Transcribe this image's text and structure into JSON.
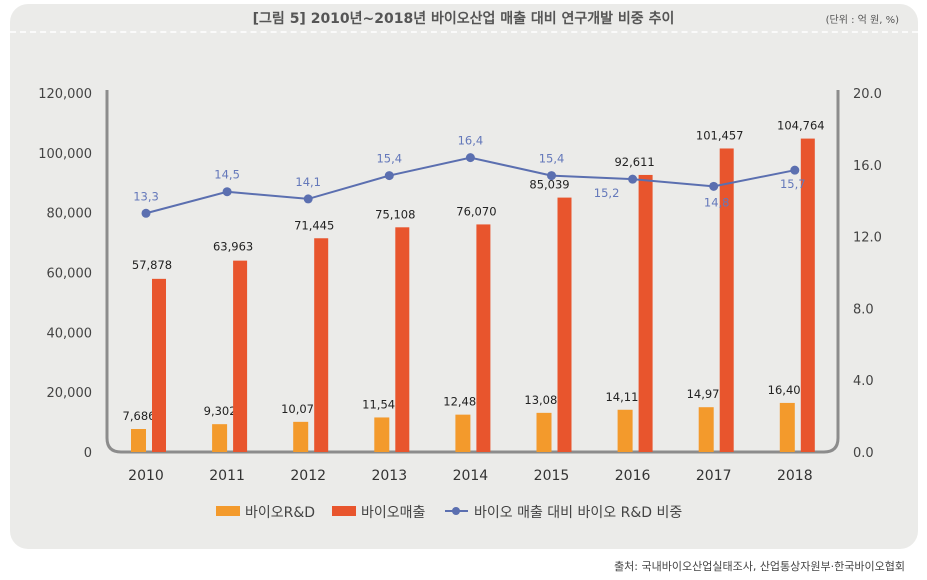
{
  "chart_data": {
    "type": "bar",
    "title": "[그림 5] 2010년~2018년 바이오산업 매출 대비 연구개발 비중 추이",
    "unit_note": "(단위 : 억 원, %)",
    "source": "출처: 국내바이오산업실태조사, 산업통상자원부·한국바이오협회",
    "categories": [
      "2010",
      "2011",
      "2012",
      "2013",
      "2014",
      "2015",
      "2016",
      "2017",
      "2018"
    ],
    "series": [
      {
        "name": "바이오R&D",
        "type": "bar",
        "axis": "left",
        "color": "#f39a2c",
        "values": [
          7686,
          9302,
          10079,
          11547,
          12486,
          13086,
          14118,
          14973,
          16406
        ],
        "labels": [
          "7,686",
          "9,302",
          "10,079",
          "11,547",
          "12,486",
          "13,086",
          "14,118",
          "14,973",
          "16,406"
        ]
      },
      {
        "name": "바이오매출",
        "type": "bar",
        "axis": "left",
        "color": "#e8552d",
        "values": [
          57878,
          63963,
          71445,
          75108,
          76070,
          85039,
          92611,
          101457,
          104764
        ],
        "labels": [
          "57,878",
          "63,963",
          "71,445",
          "75,108",
          "76,070",
          "85,039",
          "92,611",
          "101,457",
          "104,764"
        ]
      },
      {
        "name": "바이오 매출 대비 바이오 R&D 비중",
        "type": "line",
        "axis": "right",
        "color": "#5b6fb0",
        "values": [
          13.3,
          14.5,
          14.1,
          15.4,
          16.4,
          15.4,
          15.2,
          14.8,
          15.7
        ],
        "labels": [
          "13,3",
          "14,5",
          "14,1",
          "15,4",
          "16,4",
          "15,4",
          "15,2",
          "14,8",
          "15,7"
        ]
      }
    ],
    "y_left": {
      "range": [
        0,
        120000
      ],
      "ticks": [
        "0",
        "20,000",
        "40,000",
        "60,000",
        "80,000",
        "100,000",
        "120,000"
      ]
    },
    "y_right": {
      "range": [
        0,
        20
      ],
      "ticks": [
        "0.0",
        "4.0",
        "8.0",
        "12.0",
        "16.0",
        "20.0"
      ]
    },
    "legend_position": "bottom",
    "grid": false
  }
}
